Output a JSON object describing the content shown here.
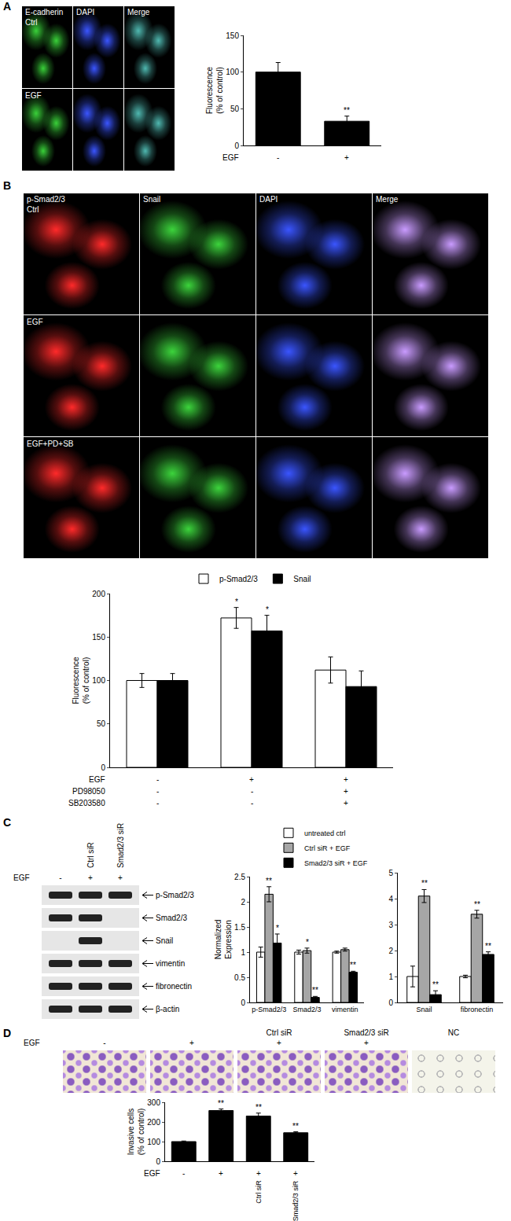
{
  "panels": [
    "A",
    "B",
    "C",
    "D"
  ],
  "images": {
    "A": {
      "columns": [
        "E-cadherin",
        "DAPI",
        "Merge"
      ],
      "rows": [
        "Ctrl",
        "EGF"
      ],
      "colors": [
        "#39d039",
        "#3a55ff",
        "#4fb8b0"
      ]
    },
    "B": {
      "columns": [
        "p-Smad2/3",
        "Snail",
        "DAPI",
        "Merge"
      ],
      "rows": [
        "Ctrl",
        "EGF",
        "EGF+PD+SB"
      ],
      "colors": [
        "#ff2a2a",
        "#3cd43c",
        "#3a55ff",
        "#c99bff"
      ]
    },
    "C": {
      "row_label": "EGF",
      "signs": [
        "-",
        "+",
        "+"
      ],
      "lanes": [
        null,
        "Ctrl siR",
        "Smad2/3 siR"
      ],
      "bands": [
        {
          "label": "p-Smad2/3",
          "present": [
            true,
            true,
            true
          ]
        },
        {
          "label": "Smad2/3",
          "present": [
            true,
            true,
            false
          ]
        },
        {
          "label": "Snail",
          "present": [
            false,
            true,
            false
          ]
        },
        {
          "label": "vimentin",
          "present": [
            true,
            true,
            true
          ]
        },
        {
          "label": "fibronectin",
          "present": [
            true,
            true,
            true
          ]
        },
        {
          "label": "β-actin",
          "present": [
            true,
            true,
            true
          ]
        }
      ]
    },
    "D": {
      "row_label": "EGF",
      "signs": [
        "-",
        "+",
        "+",
        "+",
        null
      ],
      "labels": [
        null,
        null,
        "Ctrl siR",
        "Smad2/3 siR",
        "NC"
      ]
    }
  },
  "chart_data": [
    {
      "type": "bar",
      "ylabel": [
        "Fluorescence",
        "(% of control)"
      ],
      "categories": [
        null,
        null
      ],
      "conditions": [
        {
          "label": "EGF",
          "values": [
            "-",
            "+"
          ]
        }
      ],
      "series": [
        {
          "color": "#000000",
          "values": [
            100,
            33
          ],
          "error": [
            13,
            7
          ],
          "significance": [
            null,
            "**"
          ]
        }
      ],
      "ylim": [
        0,
        150
      ],
      "yticks": [
        0,
        50,
        100,
        150
      ]
    },
    {
      "type": "bar",
      "ylabel": [
        "Fluorescence",
        "(% of control)"
      ],
      "categories": [
        null,
        null,
        null
      ],
      "conditions": [
        {
          "label": "EGF",
          "values": [
            "-",
            "+",
            "+"
          ]
        },
        {
          "label": "PD98050",
          "values": [
            "-",
            "-",
            "+"
          ]
        },
        {
          "label": "SB203580",
          "values": [
            "-",
            "-",
            "+"
          ]
        }
      ],
      "legend": "top",
      "series": [
        {
          "name": "p-Smad2/3",
          "color": "#ffffff",
          "values": [
            100,
            172,
            112
          ],
          "error": [
            8,
            12,
            15
          ],
          "significance": [
            null,
            "*",
            null
          ]
        },
        {
          "name": "Snail",
          "color": "#000000",
          "values": [
            100,
            157,
            93
          ],
          "error": [
            8,
            18,
            18
          ],
          "significance": [
            null,
            "*",
            null
          ]
        }
      ],
      "ylim": [
        0,
        200
      ],
      "yticks": [
        0,
        50,
        100,
        150,
        200
      ]
    },
    {
      "type": "bar",
      "ylabel": [
        "Normalized",
        "Expression"
      ],
      "categories": [
        "p-Smad2/3",
        "Smad2/3",
        "vimentin"
      ],
      "legend": "top",
      "series": [
        {
          "name": "untreated ctrl",
          "color": "#ffffff",
          "values": [
            1.0,
            1.0,
            1.0
          ],
          "error": [
            0.1,
            0.04,
            0.02
          ]
        },
        {
          "name": "Ctrl siR + EGF",
          "color": "#a6a6a6",
          "values": [
            2.15,
            1.03,
            1.05
          ],
          "error": [
            0.15,
            0.05,
            0.03
          ],
          "significance": [
            "**",
            "*",
            null
          ]
        },
        {
          "name": "Smad2/3 siR + EGF",
          "color": "#000000",
          "values": [
            1.18,
            0.1,
            0.6
          ],
          "error": [
            0.18,
            0.02,
            0.02
          ],
          "significance": [
            "*",
            "**",
            "**"
          ]
        }
      ],
      "ylim": [
        0,
        2.5
      ],
      "yticks": [
        0,
        0.5,
        1,
        1.5,
        2,
        2.5
      ]
    },
    {
      "type": "bar",
      "categories": [
        "Snail",
        "fibronectin"
      ],
      "series": [
        {
          "color": "#ffffff",
          "values": [
            1.0,
            1.0
          ],
          "error": [
            0.4,
            0.05
          ]
        },
        {
          "color": "#a6a6a6",
          "values": [
            4.1,
            3.4
          ],
          "error": [
            0.25,
            0.15
          ],
          "significance": [
            "**",
            "**"
          ]
        },
        {
          "color": "#000000",
          "values": [
            0.3,
            1.85
          ],
          "error": [
            0.15,
            0.1
          ],
          "significance": [
            "**",
            "**"
          ]
        }
      ],
      "ylim": [
        0,
        5
      ],
      "yticks": [
        0,
        1,
        2,
        3,
        4,
        5
      ]
    },
    {
      "type": "bar",
      "ylabel": [
        "Invasive cells",
        "(% of control)"
      ],
      "categories": [
        null,
        null,
        null,
        null
      ],
      "conditions": [
        {
          "label": "EGF",
          "values": [
            "-",
            "+",
            "+",
            "+"
          ]
        },
        {
          "values": [
            null,
            null,
            "Ctrl siR",
            "Smad2/3 siR"
          ]
        }
      ],
      "series": [
        {
          "color": "#000000",
          "values": [
            100,
            258,
            230,
            145
          ],
          "error": [
            3,
            8,
            15,
            5
          ],
          "significance": [
            null,
            "**",
            "**",
            "**"
          ]
        }
      ],
      "ylim": [
        0,
        300
      ],
      "yticks": [
        0,
        100,
        200,
        300
      ]
    }
  ]
}
